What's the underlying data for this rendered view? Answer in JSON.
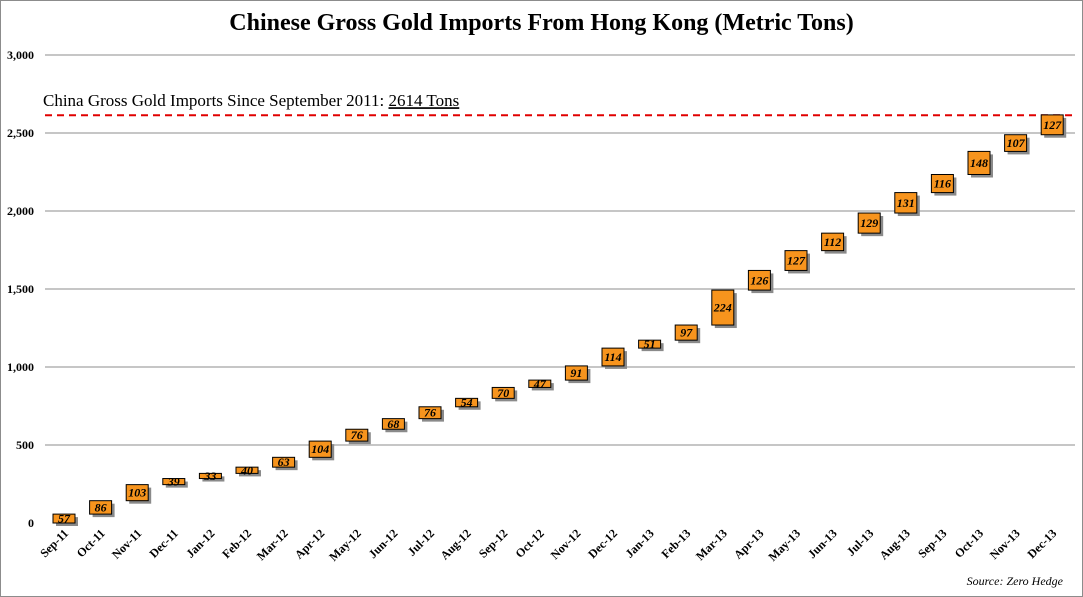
{
  "chart_data": {
    "type": "waterfall-bar",
    "title": "Chinese Gross Gold Imports From Hong Kong (Metric Tons)",
    "categories": [
      "Sep-11",
      "Oct-11",
      "Nov-11",
      "Dec-11",
      "Jan-12",
      "Feb-12",
      "Mar-12",
      "Apr-12",
      "May-12",
      "Jun-12",
      "Jul-12",
      "Aug-12",
      "Sep-12",
      "Oct-12",
      "Nov-12",
      "Dec-12",
      "Jan-13",
      "Feb-13",
      "Mar-13",
      "Apr-13",
      "May-13",
      "Jun-13",
      "Jul-13",
      "Aug-13",
      "Sep-13",
      "Oct-13",
      "Nov-13",
      "Dec-13"
    ],
    "values": [
      57,
      86,
      103,
      39,
      33,
      40,
      63,
      104,
      76,
      68,
      76,
      54,
      70,
      47,
      91,
      114,
      51,
      97,
      224,
      126,
      127,
      112,
      129,
      131,
      116,
      148,
      107,
      127
    ],
    "value_labels": [
      "57",
      "86",
      "103",
      "39",
      "33",
      "40",
      "63",
      "104",
      "76",
      "68",
      "76",
      "54",
      "70",
      "47",
      "91",
      "114",
      "51",
      "97",
      "224",
      "126",
      "127",
      "112",
      "129",
      "131",
      "116",
      "148",
      "107",
      "127"
    ],
    "ylim": [
      0,
      3000
    ],
    "yticks": [
      0,
      500,
      1000,
      1500,
      2000,
      2500,
      3000
    ],
    "ytick_labels": [
      "0",
      "500",
      "1,000",
      "1,500",
      "2,000",
      "2,500",
      "3,000"
    ],
    "grid": true,
    "bar_color": "#f7941d",
    "shadow_color": "#8a8a8a",
    "reference_line": {
      "value": 2614,
      "color": "#e00000",
      "style": "dashed",
      "label_prefix": "China Gross Gold Imports Since September 2011: ",
      "label_value": "2614 Tons"
    },
    "source": "Source: Zero Hedge"
  }
}
